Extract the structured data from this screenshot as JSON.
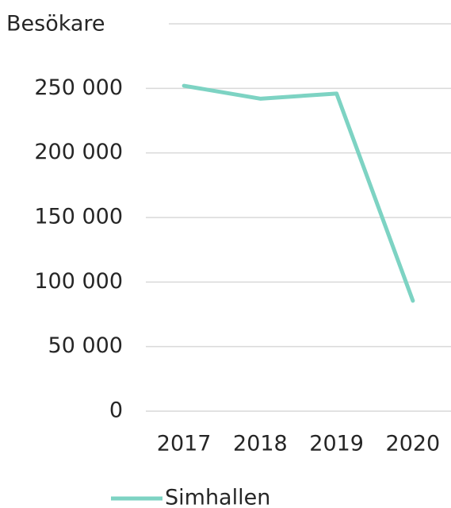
{
  "chart_data": {
    "type": "line",
    "y_label": "Besökare",
    "categories": [
      "2017",
      "2018",
      "2019",
      "2020"
    ],
    "series": [
      {
        "name": "Simhallen",
        "color": "#7dd3c3",
        "values": [
          252000,
          242000,
          246000,
          85500
        ]
      }
    ],
    "ylim": [
      0,
      300000
    ],
    "yticks": [
      0,
      {
        "value": 50000,
        "label": "50 000"
      },
      {
        "value": 100000,
        "label": "100 000"
      },
      {
        "value": 150000,
        "label": "150 000"
      },
      {
        "value": 200000,
        "label": "200 000"
      },
      {
        "value": 250000,
        "label": "250 000"
      }
    ],
    "grid": true,
    "legend": "bottom"
  }
}
